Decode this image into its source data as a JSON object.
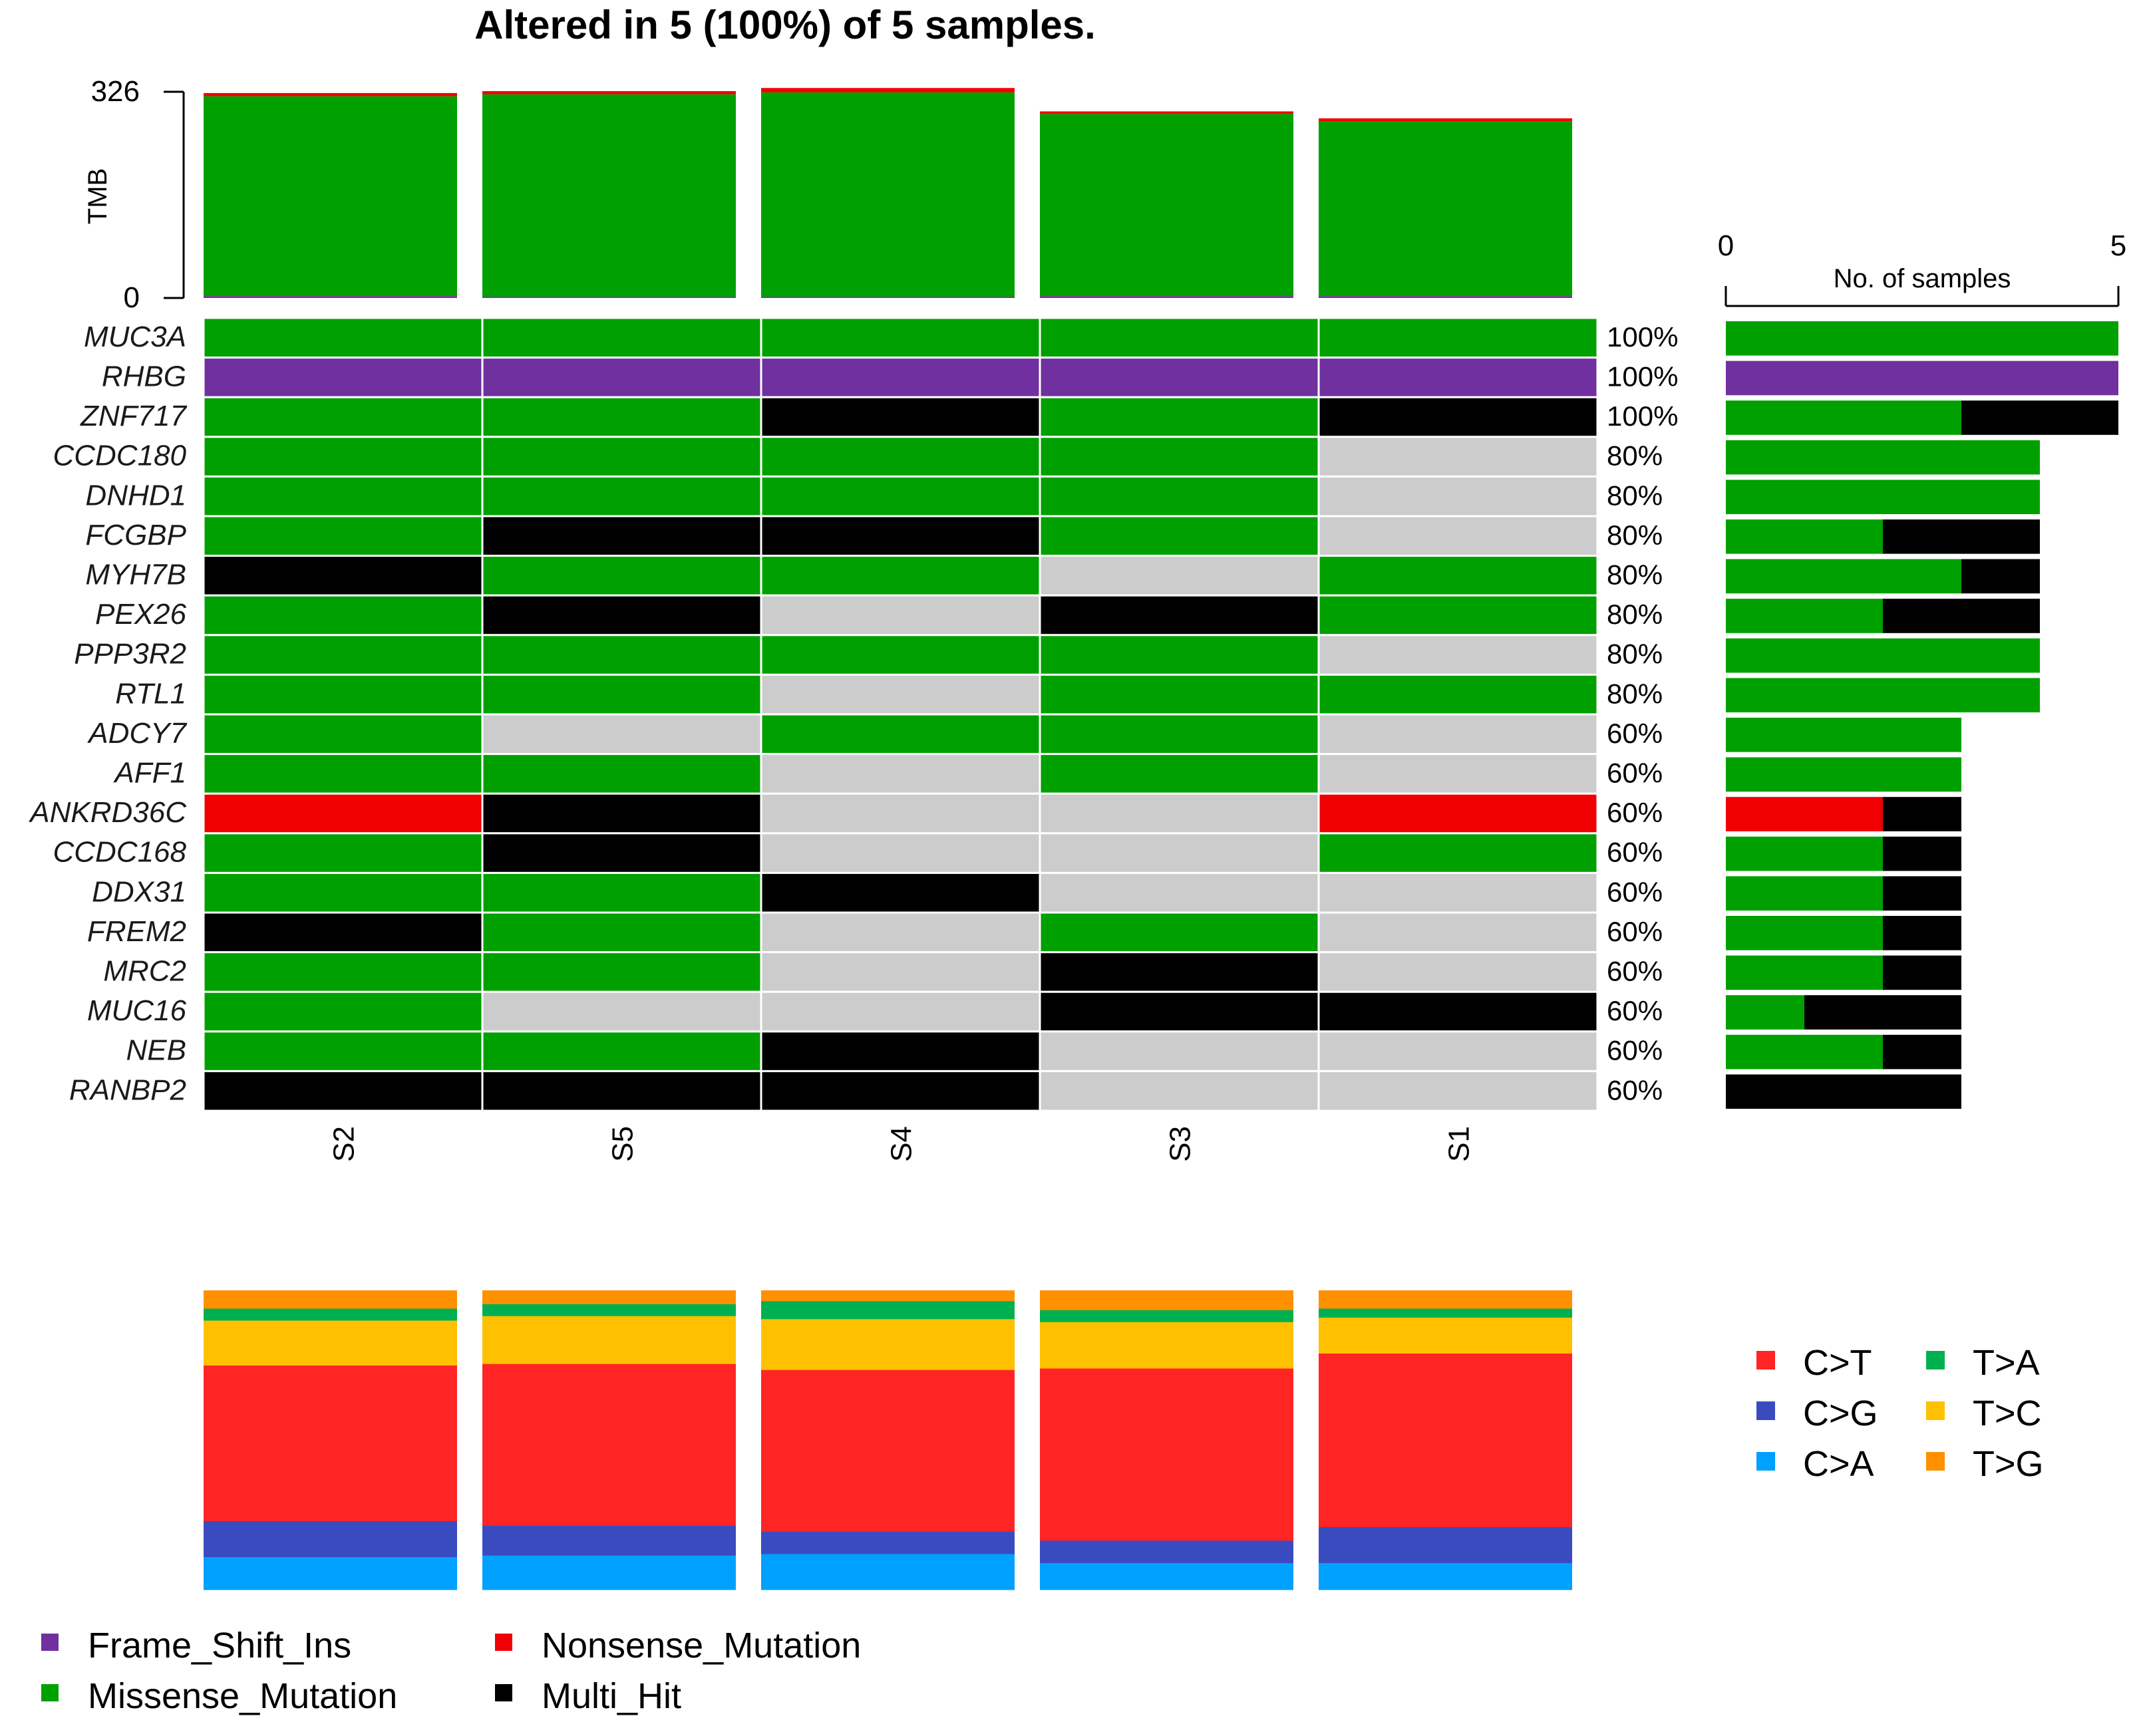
{
  "colors": {
    "Missense_Mutation": "#00A000",
    "Frame_Shift_Ins": "#7030A0",
    "Nonsense_Mutation": "#F00000",
    "Multi_Hit": "#000000",
    "empty": "#CCCCCC",
    "C>T": "#FF2525",
    "C>G": "#3A4BC0",
    "C>A": "#00A0FF",
    "T>A": "#00B050",
    "T>C": "#FFC000",
    "T>G": "#FF9000"
  },
  "chart_data": {
    "type": "oncoplot",
    "title": "Altered in 5 (100%) of 5 samples.",
    "samples": [
      "S2",
      "S5",
      "S4",
      "S3",
      "S1"
    ],
    "tmb": {
      "ylabel": "TMB",
      "ylim": [
        0,
        326
      ],
      "ticks": [
        "326",
        "0"
      ],
      "values": [
        {
          "sample": "S2",
          "Missense_Mutation": 316,
          "Nonsense_Mutation": 5,
          "Frame_Shift_Ins": 3
        },
        {
          "sample": "S5",
          "Missense_Mutation": 320,
          "Nonsense_Mutation": 5,
          "Frame_Shift_Ins": 2
        },
        {
          "sample": "S4",
          "Missense_Mutation": 323,
          "Nonsense_Mutation": 7,
          "Frame_Shift_Ins": 2
        },
        {
          "sample": "S3",
          "Missense_Mutation": 288,
          "Nonsense_Mutation": 4,
          "Frame_Shift_Ins": 3
        },
        {
          "sample": "S1",
          "Missense_Mutation": 276,
          "Nonsense_Mutation": 5,
          "Frame_Shift_Ins": 3
        }
      ]
    },
    "genes": [
      {
        "gene": "MUC3A",
        "pct": "100%",
        "cells": [
          "Missense_Mutation",
          "Missense_Mutation",
          "Missense_Mutation",
          "Missense_Mutation",
          "Missense_Mutation"
        ]
      },
      {
        "gene": "RHBG",
        "pct": "100%",
        "cells": [
          "Frame_Shift_Ins",
          "Frame_Shift_Ins",
          "Frame_Shift_Ins",
          "Frame_Shift_Ins",
          "Frame_Shift_Ins"
        ]
      },
      {
        "gene": "ZNF717",
        "pct": "100%",
        "cells": [
          "Missense_Mutation",
          "Missense_Mutation",
          "Multi_Hit",
          "Missense_Mutation",
          "Multi_Hit"
        ]
      },
      {
        "gene": "CCDC180",
        "pct": "80%",
        "cells": [
          "Missense_Mutation",
          "Missense_Mutation",
          "Missense_Mutation",
          "Missense_Mutation",
          "empty"
        ]
      },
      {
        "gene": "DNHD1",
        "pct": "80%",
        "cells": [
          "Missense_Mutation",
          "Missense_Mutation",
          "Missense_Mutation",
          "Missense_Mutation",
          "empty"
        ]
      },
      {
        "gene": "FCGBP",
        "pct": "80%",
        "cells": [
          "Missense_Mutation",
          "Multi_Hit",
          "Multi_Hit",
          "Missense_Mutation",
          "empty"
        ]
      },
      {
        "gene": "MYH7B",
        "pct": "80%",
        "cells": [
          "Multi_Hit",
          "Missense_Mutation",
          "Missense_Mutation",
          "empty",
          "Missense_Mutation"
        ]
      },
      {
        "gene": "PEX26",
        "pct": "80%",
        "cells": [
          "Missense_Mutation",
          "Multi_Hit",
          "empty",
          "Multi_Hit",
          "Missense_Mutation"
        ]
      },
      {
        "gene": "PPP3R2",
        "pct": "80%",
        "cells": [
          "Missense_Mutation",
          "Missense_Mutation",
          "Missense_Mutation",
          "Missense_Mutation",
          "empty"
        ]
      },
      {
        "gene": "RTL1",
        "pct": "80%",
        "cells": [
          "Missense_Mutation",
          "Missense_Mutation",
          "empty",
          "Missense_Mutation",
          "Missense_Mutation"
        ]
      },
      {
        "gene": "ADCY7",
        "pct": "60%",
        "cells": [
          "Missense_Mutation",
          "empty",
          "Missense_Mutation",
          "Missense_Mutation",
          "empty"
        ]
      },
      {
        "gene": "AFF1",
        "pct": "60%",
        "cells": [
          "Missense_Mutation",
          "Missense_Mutation",
          "empty",
          "Missense_Mutation",
          "empty"
        ]
      },
      {
        "gene": "ANKRD36C",
        "pct": "60%",
        "cells": [
          "Nonsense_Mutation",
          "Multi_Hit",
          "empty",
          "empty",
          "Nonsense_Mutation"
        ]
      },
      {
        "gene": "CCDC168",
        "pct": "60%",
        "cells": [
          "Missense_Mutation",
          "Multi_Hit",
          "empty",
          "empty",
          "Missense_Mutation"
        ]
      },
      {
        "gene": "DDX31",
        "pct": "60%",
        "cells": [
          "Missense_Mutation",
          "Missense_Mutation",
          "Multi_Hit",
          "empty",
          "empty"
        ]
      },
      {
        "gene": "FREM2",
        "pct": "60%",
        "cells": [
          "Multi_Hit",
          "Missense_Mutation",
          "empty",
          "Missense_Mutation",
          "empty"
        ]
      },
      {
        "gene": "MRC2",
        "pct": "60%",
        "cells": [
          "Missense_Mutation",
          "Missense_Mutation",
          "empty",
          "Multi_Hit",
          "empty"
        ]
      },
      {
        "gene": "MUC16",
        "pct": "60%",
        "cells": [
          "Missense_Mutation",
          "empty",
          "empty",
          "Multi_Hit",
          "Multi_Hit"
        ]
      },
      {
        "gene": "NEB",
        "pct": "60%",
        "cells": [
          "Missense_Mutation",
          "Missense_Mutation",
          "Multi_Hit",
          "empty",
          "empty"
        ]
      },
      {
        "gene": "RANBP2",
        "pct": "60%",
        "cells": [
          "Multi_Hit",
          "Multi_Hit",
          "Multi_Hit",
          "empty",
          "empty"
        ]
      }
    ],
    "gene_bar": {
      "xlabel": "No. of samples",
      "xlim": [
        0,
        5
      ],
      "ticks": [
        "0",
        "5"
      ]
    },
    "titv": {
      "type": "stacked-bar-fraction",
      "order_bottom_to_top": [
        "C>A",
        "C>G",
        "C>T",
        "T>C",
        "T>A",
        "T>G"
      ],
      "values": [
        {
          "sample": "S2",
          "C>A": 0.11,
          "C>G": 0.12,
          "C>T": 0.52,
          "T>C": 0.15,
          "T>A": 0.04,
          "T>G": 0.06
        },
        {
          "sample": "S5",
          "C>A": 0.115,
          "C>G": 0.1,
          "C>T": 0.54,
          "T>C": 0.16,
          "T>A": 0.04,
          "T>G": 0.045
        },
        {
          "sample": "S4",
          "C>A": 0.12,
          "C>G": 0.075,
          "C>T": 0.54,
          "T>C": 0.17,
          "T>A": 0.06,
          "T>G": 0.035
        },
        {
          "sample": "S3",
          "C>A": 0.09,
          "C>G": 0.075,
          "C>T": 0.575,
          "T>C": 0.155,
          "T>A": 0.04,
          "T>G": 0.065
        },
        {
          "sample": "S1",
          "C>A": 0.09,
          "C>G": 0.12,
          "C>T": 0.58,
          "T>C": 0.12,
          "T>A": 0.03,
          "T>G": 0.06
        }
      ]
    },
    "titv_legend": [
      "C>T",
      "C>G",
      "C>A",
      "T>A",
      "T>C",
      "T>G"
    ],
    "variant_legend": [
      "Frame_Shift_Ins",
      "Missense_Mutation",
      "Nonsense_Mutation",
      "Multi_Hit"
    ]
  }
}
